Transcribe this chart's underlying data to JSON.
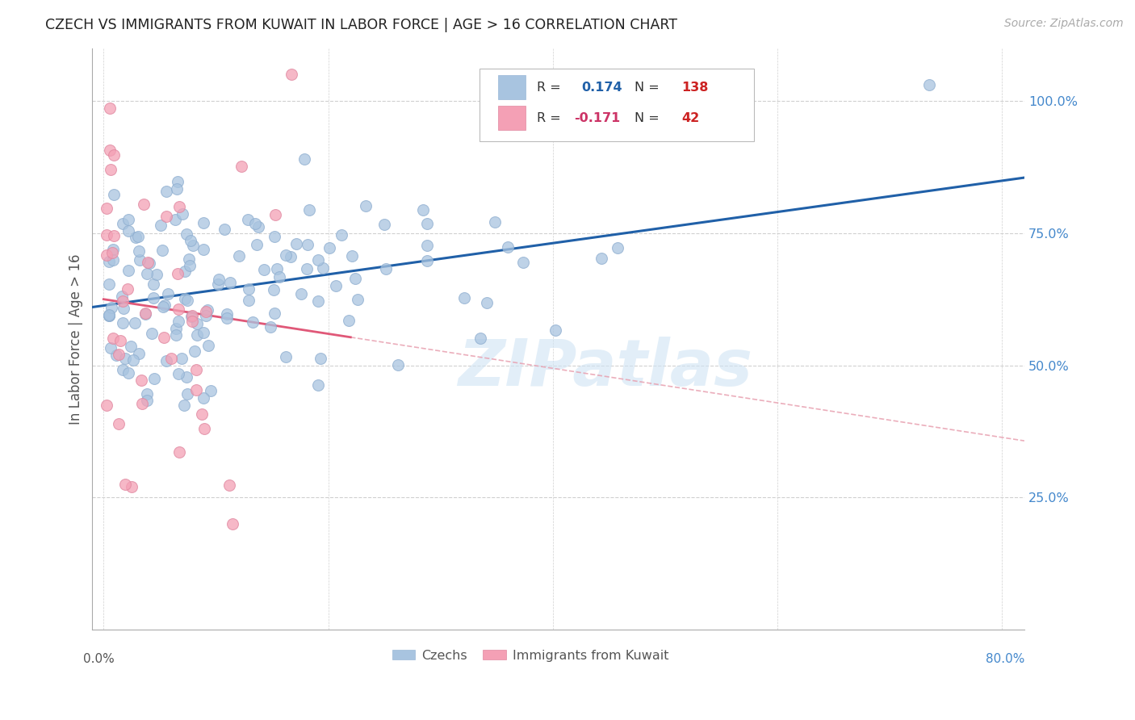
{
  "title": "CZECH VS IMMIGRANTS FROM KUWAIT IN LABOR FORCE | AGE > 16 CORRELATION CHART",
  "source": "Source: ZipAtlas.com",
  "ylabel": "In Labor Force | Age > 16",
  "x_ticks_labels": [
    "0.0%",
    "80.0%"
  ],
  "x_ticks_pos": [
    0.0,
    0.8
  ],
  "y_ticks_right_labels": [
    "25.0%",
    "50.0%",
    "75.0%",
    "100.0%"
  ],
  "y_ticks_right_pos": [
    0.25,
    0.5,
    0.75,
    1.0
  ],
  "xlim": [
    -0.01,
    0.82
  ],
  "ylim": [
    0.0,
    1.1
  ],
  "R_czech": 0.174,
  "N_czech": 138,
  "R_kuwait": -0.171,
  "N_kuwait": 42,
  "blue_color": "#a8c4e0",
  "blue_edge_color": "#90afd0",
  "pink_color": "#f4a0b5",
  "pink_edge_color": "#e088a0",
  "blue_line_color": "#2060a8",
  "pink_line_solid_color": "#e05878",
  "pink_line_dash_color": "#e8a0b0",
  "watermark_color": "#d0e4f4",
  "background_color": "#ffffff",
  "grid_color": "#d0d0d0",
  "title_fontsize": 12.5,
  "axis_label_color_right": "#4488cc",
  "legend_r1_color": "#2060a8",
  "legend_r2_color": "#cc3366",
  "legend_n_color": "#cc2222",
  "watermark": "ZIPatlas"
}
